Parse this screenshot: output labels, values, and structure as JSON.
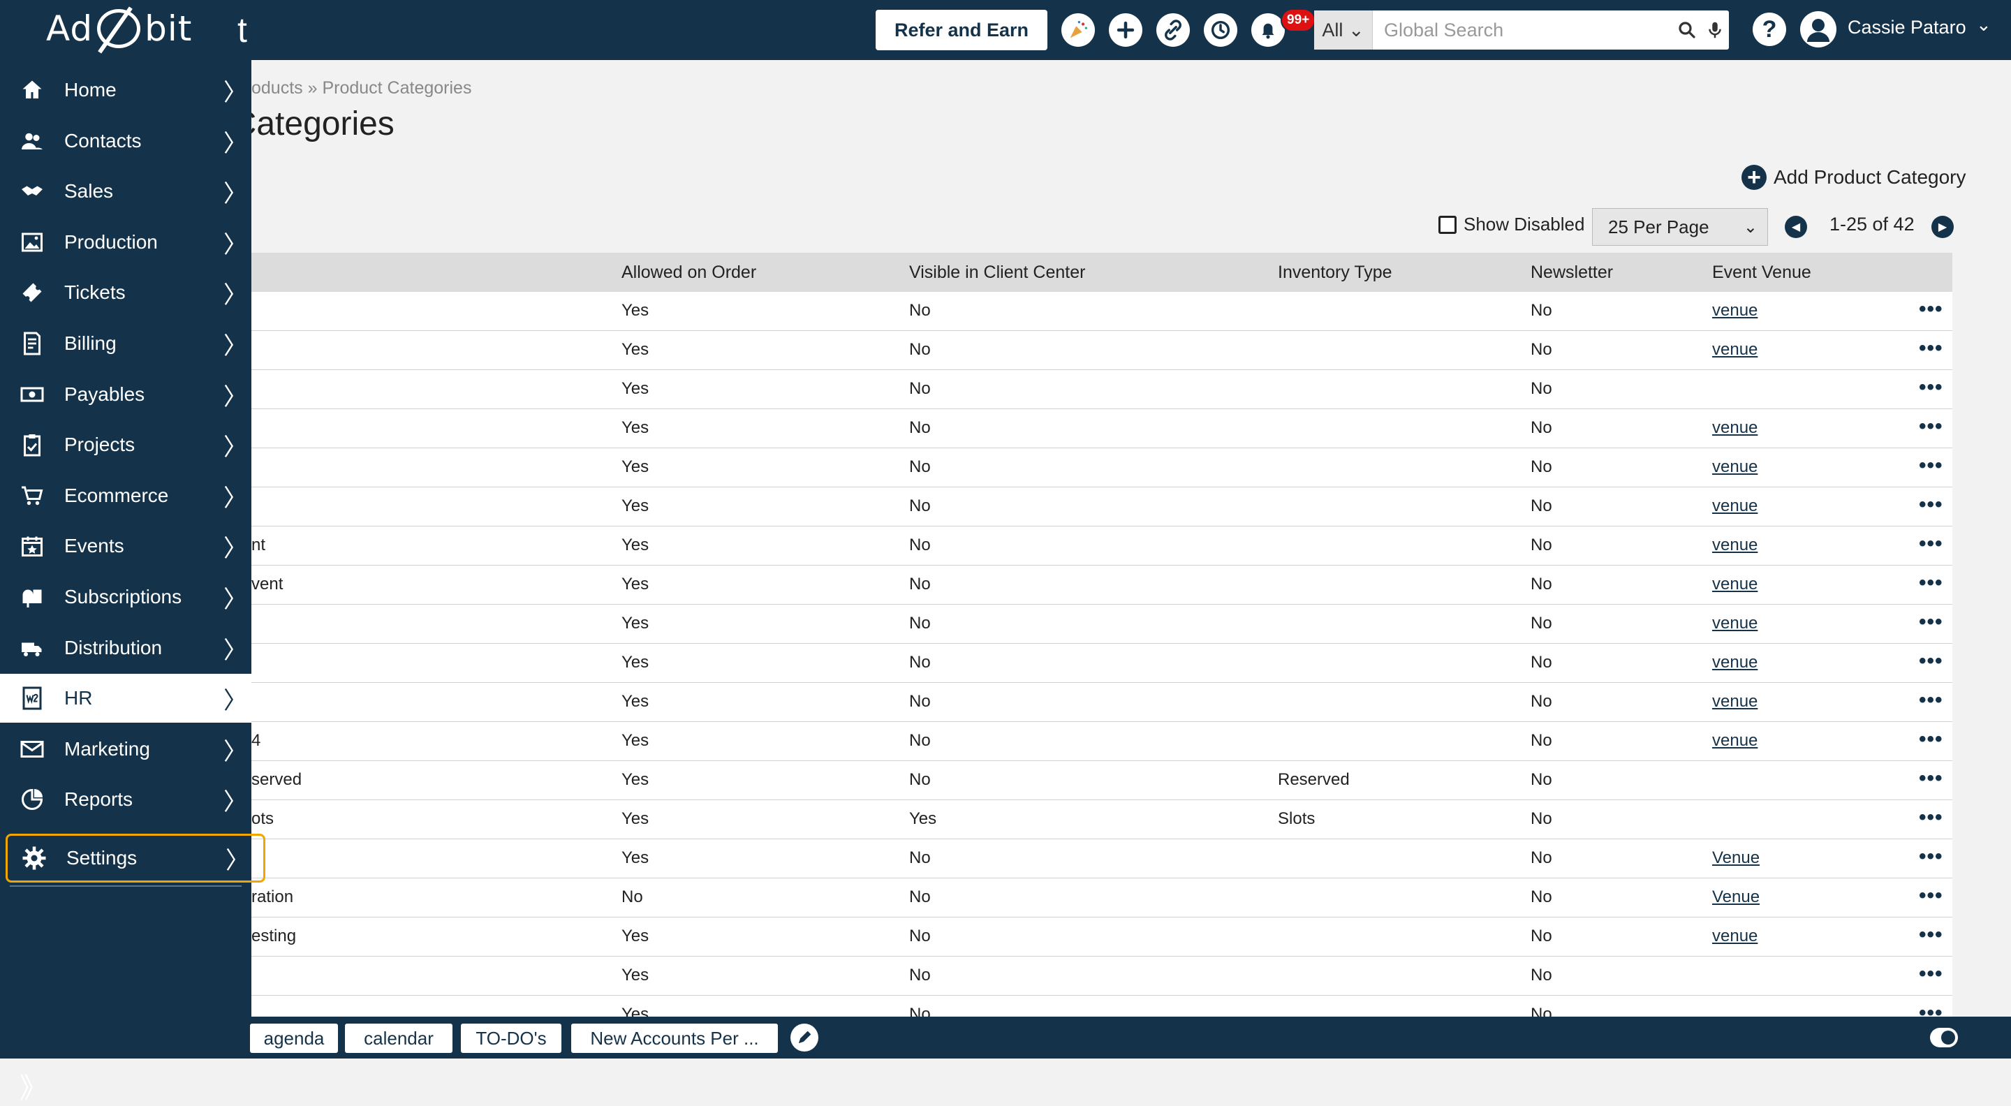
{
  "app": {
    "logo_text_left": "Ad",
    "logo_text_right": "bit",
    "topbar_trunc": "t",
    "accent_color": "#14334a",
    "highlight_color": "#f0a500"
  },
  "topbar": {
    "refer_label": "Refer and Earn",
    "notification_badge": "99+",
    "search_scope": "All",
    "search_placeholder": "Global Search",
    "help_label": "?",
    "user_name": "Cassie Pataro"
  },
  "breadcrumb": "oducts » Product Categories",
  "page_title": "t Categories",
  "actions": {
    "add_label": "Add Product Category",
    "show_disabled_label": "Show Disabled",
    "per_page": "25 Per Page",
    "pager_text": "1-25 of 42"
  },
  "table": {
    "headers": [
      "Allowed on Order",
      "Visible in Client Center",
      "Inventory Type",
      "Newsletter",
      "Event Venue"
    ],
    "rows": [
      {
        "name": "",
        "allowed": "Yes",
        "visible": "No",
        "inventory": "",
        "newsletter": "No",
        "venue": "venue"
      },
      {
        "name": "",
        "allowed": "Yes",
        "visible": "No",
        "inventory": "",
        "newsletter": "No",
        "venue": "venue"
      },
      {
        "name": "",
        "allowed": "Yes",
        "visible": "No",
        "inventory": "",
        "newsletter": "No",
        "venue": ""
      },
      {
        "name": "",
        "allowed": "Yes",
        "visible": "No",
        "inventory": "",
        "newsletter": "No",
        "venue": "venue"
      },
      {
        "name": "",
        "allowed": "Yes",
        "visible": "No",
        "inventory": "",
        "newsletter": "No",
        "venue": "venue"
      },
      {
        "name": "",
        "allowed": "Yes",
        "visible": "No",
        "inventory": "",
        "newsletter": "No",
        "venue": "venue"
      },
      {
        "name": "nt",
        "allowed": "Yes",
        "visible": "No",
        "inventory": "",
        "newsletter": "No",
        "venue": "venue"
      },
      {
        "name": "vent",
        "allowed": "Yes",
        "visible": "No",
        "inventory": "",
        "newsletter": "No",
        "venue": "venue"
      },
      {
        "name": "",
        "allowed": "Yes",
        "visible": "No",
        "inventory": "",
        "newsletter": "No",
        "venue": "venue"
      },
      {
        "name": "",
        "allowed": "Yes",
        "visible": "No",
        "inventory": "",
        "newsletter": "No",
        "venue": "venue"
      },
      {
        "name": "",
        "allowed": "Yes",
        "visible": "No",
        "inventory": "",
        "newsletter": "No",
        "venue": "venue"
      },
      {
        "name": "4",
        "allowed": "Yes",
        "visible": "No",
        "inventory": "",
        "newsletter": "No",
        "venue": "venue"
      },
      {
        "name": "served",
        "allowed": "Yes",
        "visible": "No",
        "inventory": "Reserved",
        "newsletter": "No",
        "venue": ""
      },
      {
        "name": "ots",
        "allowed": "Yes",
        "visible": "Yes",
        "inventory": "Slots",
        "newsletter": "No",
        "venue": ""
      },
      {
        "name": "",
        "allowed": "Yes",
        "visible": "No",
        "inventory": "",
        "newsletter": "No",
        "venue": "Venue"
      },
      {
        "name": "ration",
        "allowed": "No",
        "visible": "No",
        "inventory": "",
        "newsletter": "No",
        "venue": "Venue"
      },
      {
        "name": "esting",
        "allowed": "Yes",
        "visible": "No",
        "inventory": "",
        "newsletter": "No",
        "venue": "venue"
      },
      {
        "name": "",
        "allowed": "Yes",
        "visible": "No",
        "inventory": "",
        "newsletter": "No",
        "venue": ""
      },
      {
        "name": "",
        "allowed": "Yes",
        "visible": "No",
        "inventory": "",
        "newsletter": "No",
        "venue": ""
      }
    ],
    "row_menu": "•••"
  },
  "sidebar": {
    "items": [
      {
        "label": "Home",
        "icon": "home-icon"
      },
      {
        "label": "Contacts",
        "icon": "contacts-icon"
      },
      {
        "label": "Sales",
        "icon": "handshake-icon"
      },
      {
        "label": "Production",
        "icon": "image-icon"
      },
      {
        "label": "Tickets",
        "icon": "ticket-icon"
      },
      {
        "label": "Billing",
        "icon": "invoice-icon"
      },
      {
        "label": "Payables",
        "icon": "money-icon"
      },
      {
        "label": "Projects",
        "icon": "clipboard-icon"
      },
      {
        "label": "Ecommerce",
        "icon": "cart-icon"
      },
      {
        "label": "Events",
        "icon": "calendar-star-icon"
      },
      {
        "label": "Subscriptions",
        "icon": "mailbox-icon"
      },
      {
        "label": "Distribution",
        "icon": "truck-icon"
      },
      {
        "label": "HR",
        "icon": "w2-form-icon",
        "active": true
      },
      {
        "label": "Marketing",
        "icon": "envelope-icon"
      },
      {
        "label": "Reports",
        "icon": "chart-icon"
      }
    ],
    "settings": {
      "label": "Settings",
      "icon": "gear-icon"
    },
    "chevron": "〉",
    "collapse": "》"
  },
  "bottom_tabs": [
    "agenda",
    "calendar",
    "TO-DO's",
    "New Accounts Per ..."
  ]
}
